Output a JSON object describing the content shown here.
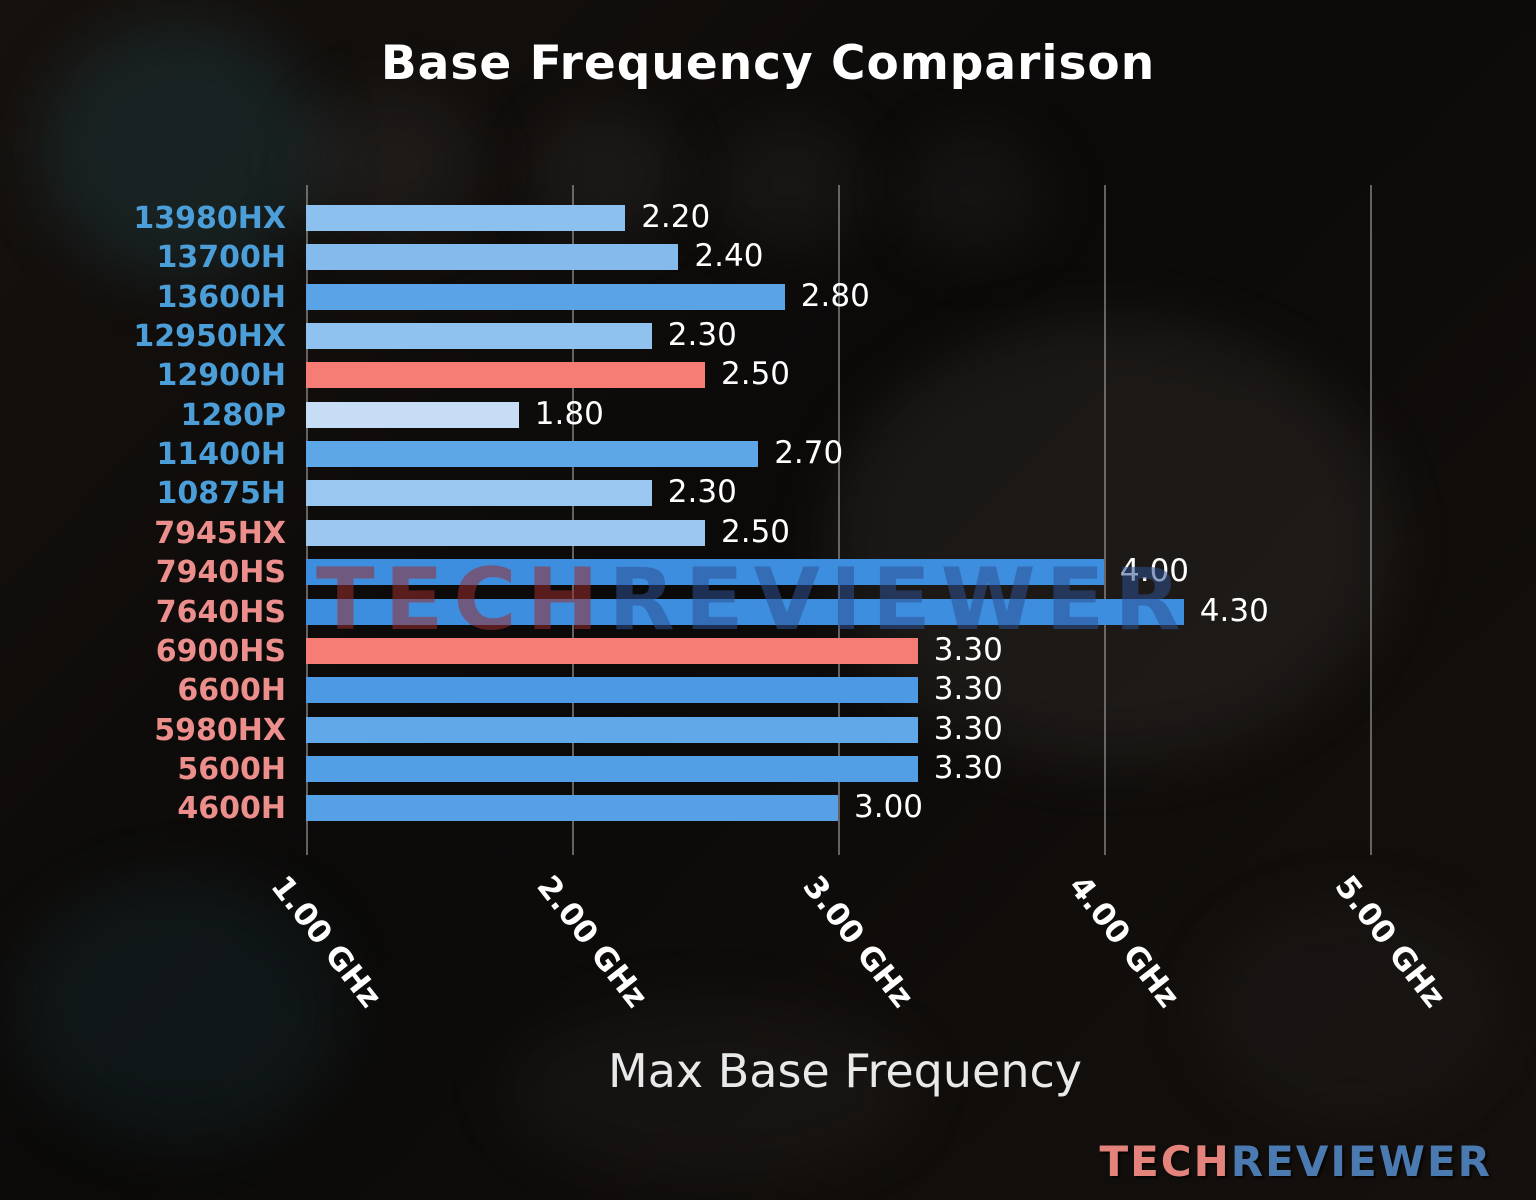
{
  "title": "Base Frequency Comparison",
  "xlabel": "Max Base Frequency",
  "watermark": {
    "part1": "TECH",
    "part2": "REVIEWER"
  },
  "logo": {
    "part1": "TECH",
    "part2": "REVIEWER"
  },
  "colors": {
    "intel_label": "#4c9ed9",
    "amd_label": "#ec8f8c",
    "highlight_bar": "#f57d76",
    "value_text": "#ffffff",
    "logo_tech": "#e4827c",
    "logo_reviewer": "#4a7ab0"
  },
  "chart_data": {
    "type": "bar",
    "orientation": "horizontal",
    "title": "Base Frequency Comparison",
    "xlabel": "Max Base Frequency",
    "xlim": [
      1.0,
      5.3
    ],
    "grid": true,
    "x_ticks": [
      {
        "value": 1.0,
        "label": "1.00 GHz"
      },
      {
        "value": 2.0,
        "label": "2.00 GHz"
      },
      {
        "value": 3.0,
        "label": "3.00 GHz"
      },
      {
        "value": 4.0,
        "label": "4.00 GHz"
      },
      {
        "value": 5.0,
        "label": "5.00 GHz"
      }
    ],
    "bars": [
      {
        "category": "13980HX",
        "value": 2.2,
        "value_label": "2.20",
        "bar_color": "#8cc0ee",
        "label_color": "#4c9ed9"
      },
      {
        "category": "13700H",
        "value": 2.4,
        "value_label": "2.40",
        "bar_color": "#84bbec",
        "label_color": "#4c9ed9"
      },
      {
        "category": "13600H",
        "value": 2.8,
        "value_label": "2.80",
        "bar_color": "#59a3e6",
        "label_color": "#4c9ed9"
      },
      {
        "category": "12950HX",
        "value": 2.3,
        "value_label": "2.30",
        "bar_color": "#8fc2ee",
        "label_color": "#4c9ed9"
      },
      {
        "category": "12900H",
        "value": 2.5,
        "value_label": "2.50",
        "bar_color": "#f57d76",
        "label_color": "#4c9ed9"
      },
      {
        "category": "1280P",
        "value": 1.8,
        "value_label": "1.80",
        "bar_color": "#c7ddf5",
        "label_color": "#4c9ed9"
      },
      {
        "category": "11400H",
        "value": 2.7,
        "value_label": "2.70",
        "bar_color": "#5ea7e7",
        "label_color": "#4c9ed9"
      },
      {
        "category": "10875H",
        "value": 2.3,
        "value_label": "2.30",
        "bar_color": "#9ac7f0",
        "label_color": "#4c9ed9"
      },
      {
        "category": "7945HX",
        "value": 2.5,
        "value_label": "2.50",
        "bar_color": "#9cc8f0",
        "label_color": "#ec8f8c"
      },
      {
        "category": "7940HS",
        "value": 4.0,
        "value_label": "4.00",
        "bar_color": "#3d8edf",
        "label_color": "#ec8f8c"
      },
      {
        "category": "7640HS",
        "value": 4.3,
        "value_label": "4.30",
        "bar_color": "#3d8edf",
        "label_color": "#ec8f8c"
      },
      {
        "category": "6900HS",
        "value": 3.3,
        "value_label": "3.30",
        "bar_color": "#f57d76",
        "label_color": "#ec8f8c"
      },
      {
        "category": "6600H",
        "value": 3.3,
        "value_label": "3.30",
        "bar_color": "#4d99e3",
        "label_color": "#ec8f8c"
      },
      {
        "category": "5980HX",
        "value": 3.3,
        "value_label": "3.30",
        "bar_color": "#60a8e7",
        "label_color": "#ec8f8c"
      },
      {
        "category": "5600H",
        "value": 3.3,
        "value_label": "3.30",
        "bar_color": "#539fe5",
        "label_color": "#ec8f8c"
      },
      {
        "category": "4600H",
        "value": 3.0,
        "value_label": "3.00",
        "bar_color": "#56a1e5",
        "label_color": "#ec8f8c"
      }
    ]
  }
}
